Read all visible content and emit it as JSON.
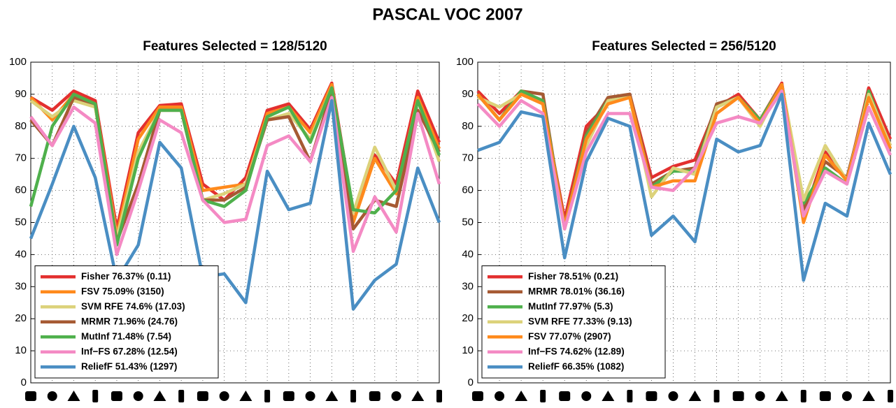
{
  "title": "PASCAL VOC 2007",
  "chart_data": [
    {
      "type": "line",
      "title": "Features Selected = 128/5120",
      "categories": [
        null,
        null,
        null,
        null,
        null,
        null,
        null,
        null,
        null,
        null,
        null,
        null,
        null,
        null,
        null,
        null,
        null,
        null,
        null,
        null
      ],
      "ylim": [
        0,
        100
      ],
      "yticks": [
        0,
        10,
        20,
        30,
        40,
        50,
        60,
        70,
        80,
        90,
        100
      ],
      "grid": true,
      "legend": "lower left",
      "series": [
        {
          "name": "Fisher 76.37% (0.11)",
          "color": "#e3302f",
          "values": [
            89,
            85,
            91,
            88,
            48,
            78,
            86.5,
            87,
            62,
            57,
            64,
            85,
            87,
            79,
            93.5,
            53,
            71,
            62,
            91,
            75
          ]
        },
        {
          "name": "FSV 75.09% (3150)",
          "color": "#ff8a1c",
          "values": [
            89,
            82,
            90,
            87,
            46,
            76,
            86,
            86,
            60,
            61,
            62,
            84,
            86,
            78,
            93,
            50,
            70,
            59,
            89,
            73
          ]
        },
        {
          "name": "SVM RFE 74.6% (17.03)",
          "color": "#dcd27a",
          "values": [
            88,
            83,
            88,
            86,
            45,
            72,
            85,
            85,
            57,
            59,
            62,
            82,
            84,
            76,
            92,
            53,
            73.5,
            60,
            88,
            69
          ]
        },
        {
          "name": "MRMR 71.96% (24.76)",
          "color": "#a65a33",
          "values": [
            82,
            74,
            89,
            87,
            44,
            62,
            85,
            85,
            57,
            57,
            61,
            82,
            83,
            69,
            91,
            48,
            57,
            55,
            85,
            72
          ]
        },
        {
          "name": "MutInf 71.48% (7.54)",
          "color": "#4fb04c",
          "values": [
            55,
            80,
            90,
            87,
            43,
            70,
            85,
            85,
            57,
            55,
            60,
            83,
            86,
            75,
            92,
            54,
            53,
            60,
            88,
            71
          ]
        },
        {
          "name": "Inf−FS 67.28% (12.54)",
          "color": "#f48ac4",
          "values": [
            83,
            74,
            86,
            81,
            40,
            60,
            82,
            78,
            57,
            50,
            51,
            74,
            77,
            69,
            89,
            41,
            58,
            47,
            84,
            62
          ]
        },
        {
          "name": "ReliefF 51.43% (1297)",
          "color": "#4a8ec3",
          "values": [
            45,
            62,
            80,
            64,
            32,
            43,
            75,
            67,
            33,
            34,
            25,
            66,
            54,
            56,
            88,
            23,
            32,
            37,
            67,
            50
          ]
        }
      ]
    },
    {
      "type": "line",
      "title": "Features Selected = 256/5120",
      "categories": [
        null,
        null,
        null,
        null,
        null,
        null,
        null,
        null,
        null,
        null,
        null,
        null,
        null,
        null,
        null,
        null,
        null,
        null,
        null,
        null
      ],
      "ylim": [
        0,
        100
      ],
      "yticks": [
        0,
        10,
        20,
        30,
        40,
        50,
        60,
        70,
        80,
        90,
        100
      ],
      "grid": true,
      "legend": "lower left",
      "series": [
        {
          "name": "Fisher 78.51% (0.21)",
          "color": "#e3302f",
          "values": [
            91,
            84,
            91,
            87,
            51,
            80,
            87,
            90,
            64,
            67.5,
            69.5,
            86,
            90,
            82,
            93.5,
            52,
            72,
            63,
            92,
            76
          ]
        },
        {
          "name": "MRMR 78.01% (36.16)",
          "color": "#a65a33",
          "values": [
            90,
            82,
            91,
            90,
            48,
            78,
            89,
            90,
            62,
            66,
            67,
            87,
            89,
            81,
            93,
            54,
            69,
            64,
            90,
            74
          ]
        },
        {
          "name": "MutInf 77.97% (5.3)",
          "color": "#4fb04c",
          "values": [
            90,
            82,
            91,
            88,
            49,
            77,
            88,
            89,
            61,
            66,
            66,
            86,
            89,
            82,
            93,
            56,
            67,
            62,
            91,
            73
          ]
        },
        {
          "name": "SVM RFE 77.33% (9.13)",
          "color": "#dcd27a",
          "values": [
            89,
            86,
            90,
            87,
            48,
            74,
            88,
            89,
            58,
            67,
            65,
            86,
            89,
            80,
            93,
            57,
            74,
            63,
            90,
            74
          ]
        },
        {
          "name": "FSV 77.07% (2907)",
          "color": "#ff8a1c",
          "values": [
            90,
            82,
            90,
            87,
            49,
            76,
            87,
            89,
            61,
            63,
            63,
            84,
            89,
            81,
            93,
            50,
            71,
            63,
            89,
            73
          ]
        },
        {
          "name": "Inf−FS 74.62% (12.89)",
          "color": "#f48ac4",
          "values": [
            87,
            80,
            88,
            84,
            48,
            72,
            84,
            84,
            61,
            60,
            67,
            81,
            83,
            81,
            91,
            52,
            66,
            62,
            86,
            71
          ]
        },
        {
          "name": "ReliefF 66.35% (1082)",
          "color": "#4a8ec3",
          "values": [
            72.5,
            75,
            84.5,
            83,
            39,
            69,
            82.5,
            80,
            46,
            52,
            44,
            76,
            72,
            74,
            90,
            32,
            56,
            52,
            81,
            65
          ]
        }
      ]
    }
  ]
}
